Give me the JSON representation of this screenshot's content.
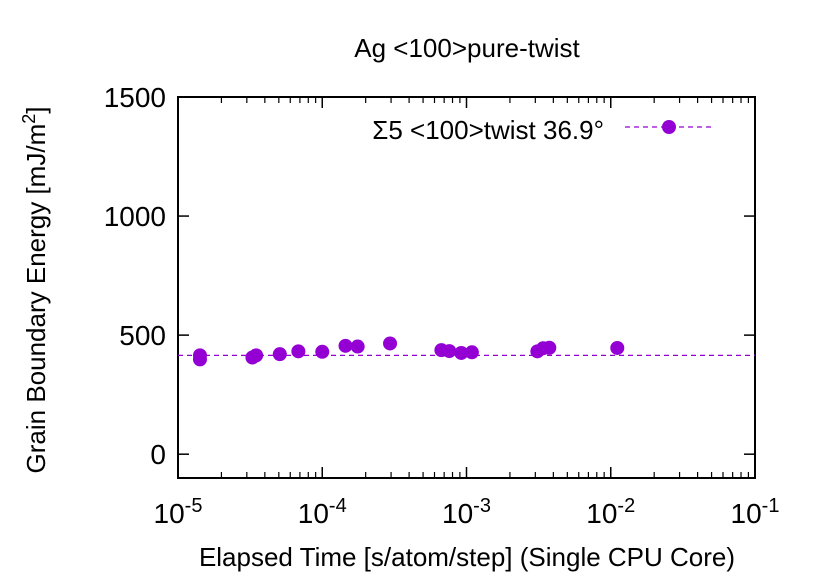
{
  "chart_data": {
    "type": "scatter",
    "title": "Ag <100>pure-twist",
    "xlabel": "Elapsed Time [s/atom/step] (Single CPU Core)",
    "ylabel": "Grain Boundary Energy [mJ/m",
    "ylabel_sup": "2",
    "ylabel_close": "]",
    "x_scale": "log",
    "xlim": [
      1e-05,
      0.1
    ],
    "ylim": [
      -100,
      1500
    ],
    "x_ticks": [
      {
        "value": 1e-05,
        "base": "10",
        "exp": "-5"
      },
      {
        "value": 0.0001,
        "base": "10",
        "exp": "-4"
      },
      {
        "value": 0.001,
        "base": "10",
        "exp": "-3"
      },
      {
        "value": 0.01,
        "base": "10",
        "exp": "-2"
      },
      {
        "value": 0.1,
        "base": "10",
        "exp": "-1"
      }
    ],
    "y_ticks": [
      {
        "value": 0,
        "label": "0"
      },
      {
        "value": 500,
        "label": "500"
      },
      {
        "value": 1000,
        "label": "1000"
      },
      {
        "value": 1500,
        "label": "1500"
      }
    ],
    "grid": false,
    "legend_position": "top-right",
    "series": [
      {
        "name": "Σ5 <100>twist 36.9°",
        "color": "#9400d3",
        "line_style": "dashed",
        "reference_y": 415,
        "points": [
          {
            "x": 1.42e-05,
            "y": 415
          },
          {
            "x": 1.42e-05,
            "y": 398
          },
          {
            "x": 3.28e-05,
            "y": 406
          },
          {
            "x": 3.48e-05,
            "y": 415
          },
          {
            "x": 5.08e-05,
            "y": 420
          },
          {
            "x": 6.83e-05,
            "y": 432
          },
          {
            "x": 0.0001,
            "y": 430
          },
          {
            "x": 0.000145,
            "y": 455
          },
          {
            "x": 0.000176,
            "y": 452
          },
          {
            "x": 0.000295,
            "y": 465
          },
          {
            "x": 0.00067,
            "y": 437
          },
          {
            "x": 0.00076,
            "y": 433
          },
          {
            "x": 0.00092,
            "y": 425
          },
          {
            "x": 0.00109,
            "y": 428
          },
          {
            "x": 0.0031,
            "y": 432
          },
          {
            "x": 0.0034,
            "y": 445
          },
          {
            "x": 0.00375,
            "y": 447
          },
          {
            "x": 0.0111,
            "y": 446
          }
        ]
      }
    ]
  }
}
